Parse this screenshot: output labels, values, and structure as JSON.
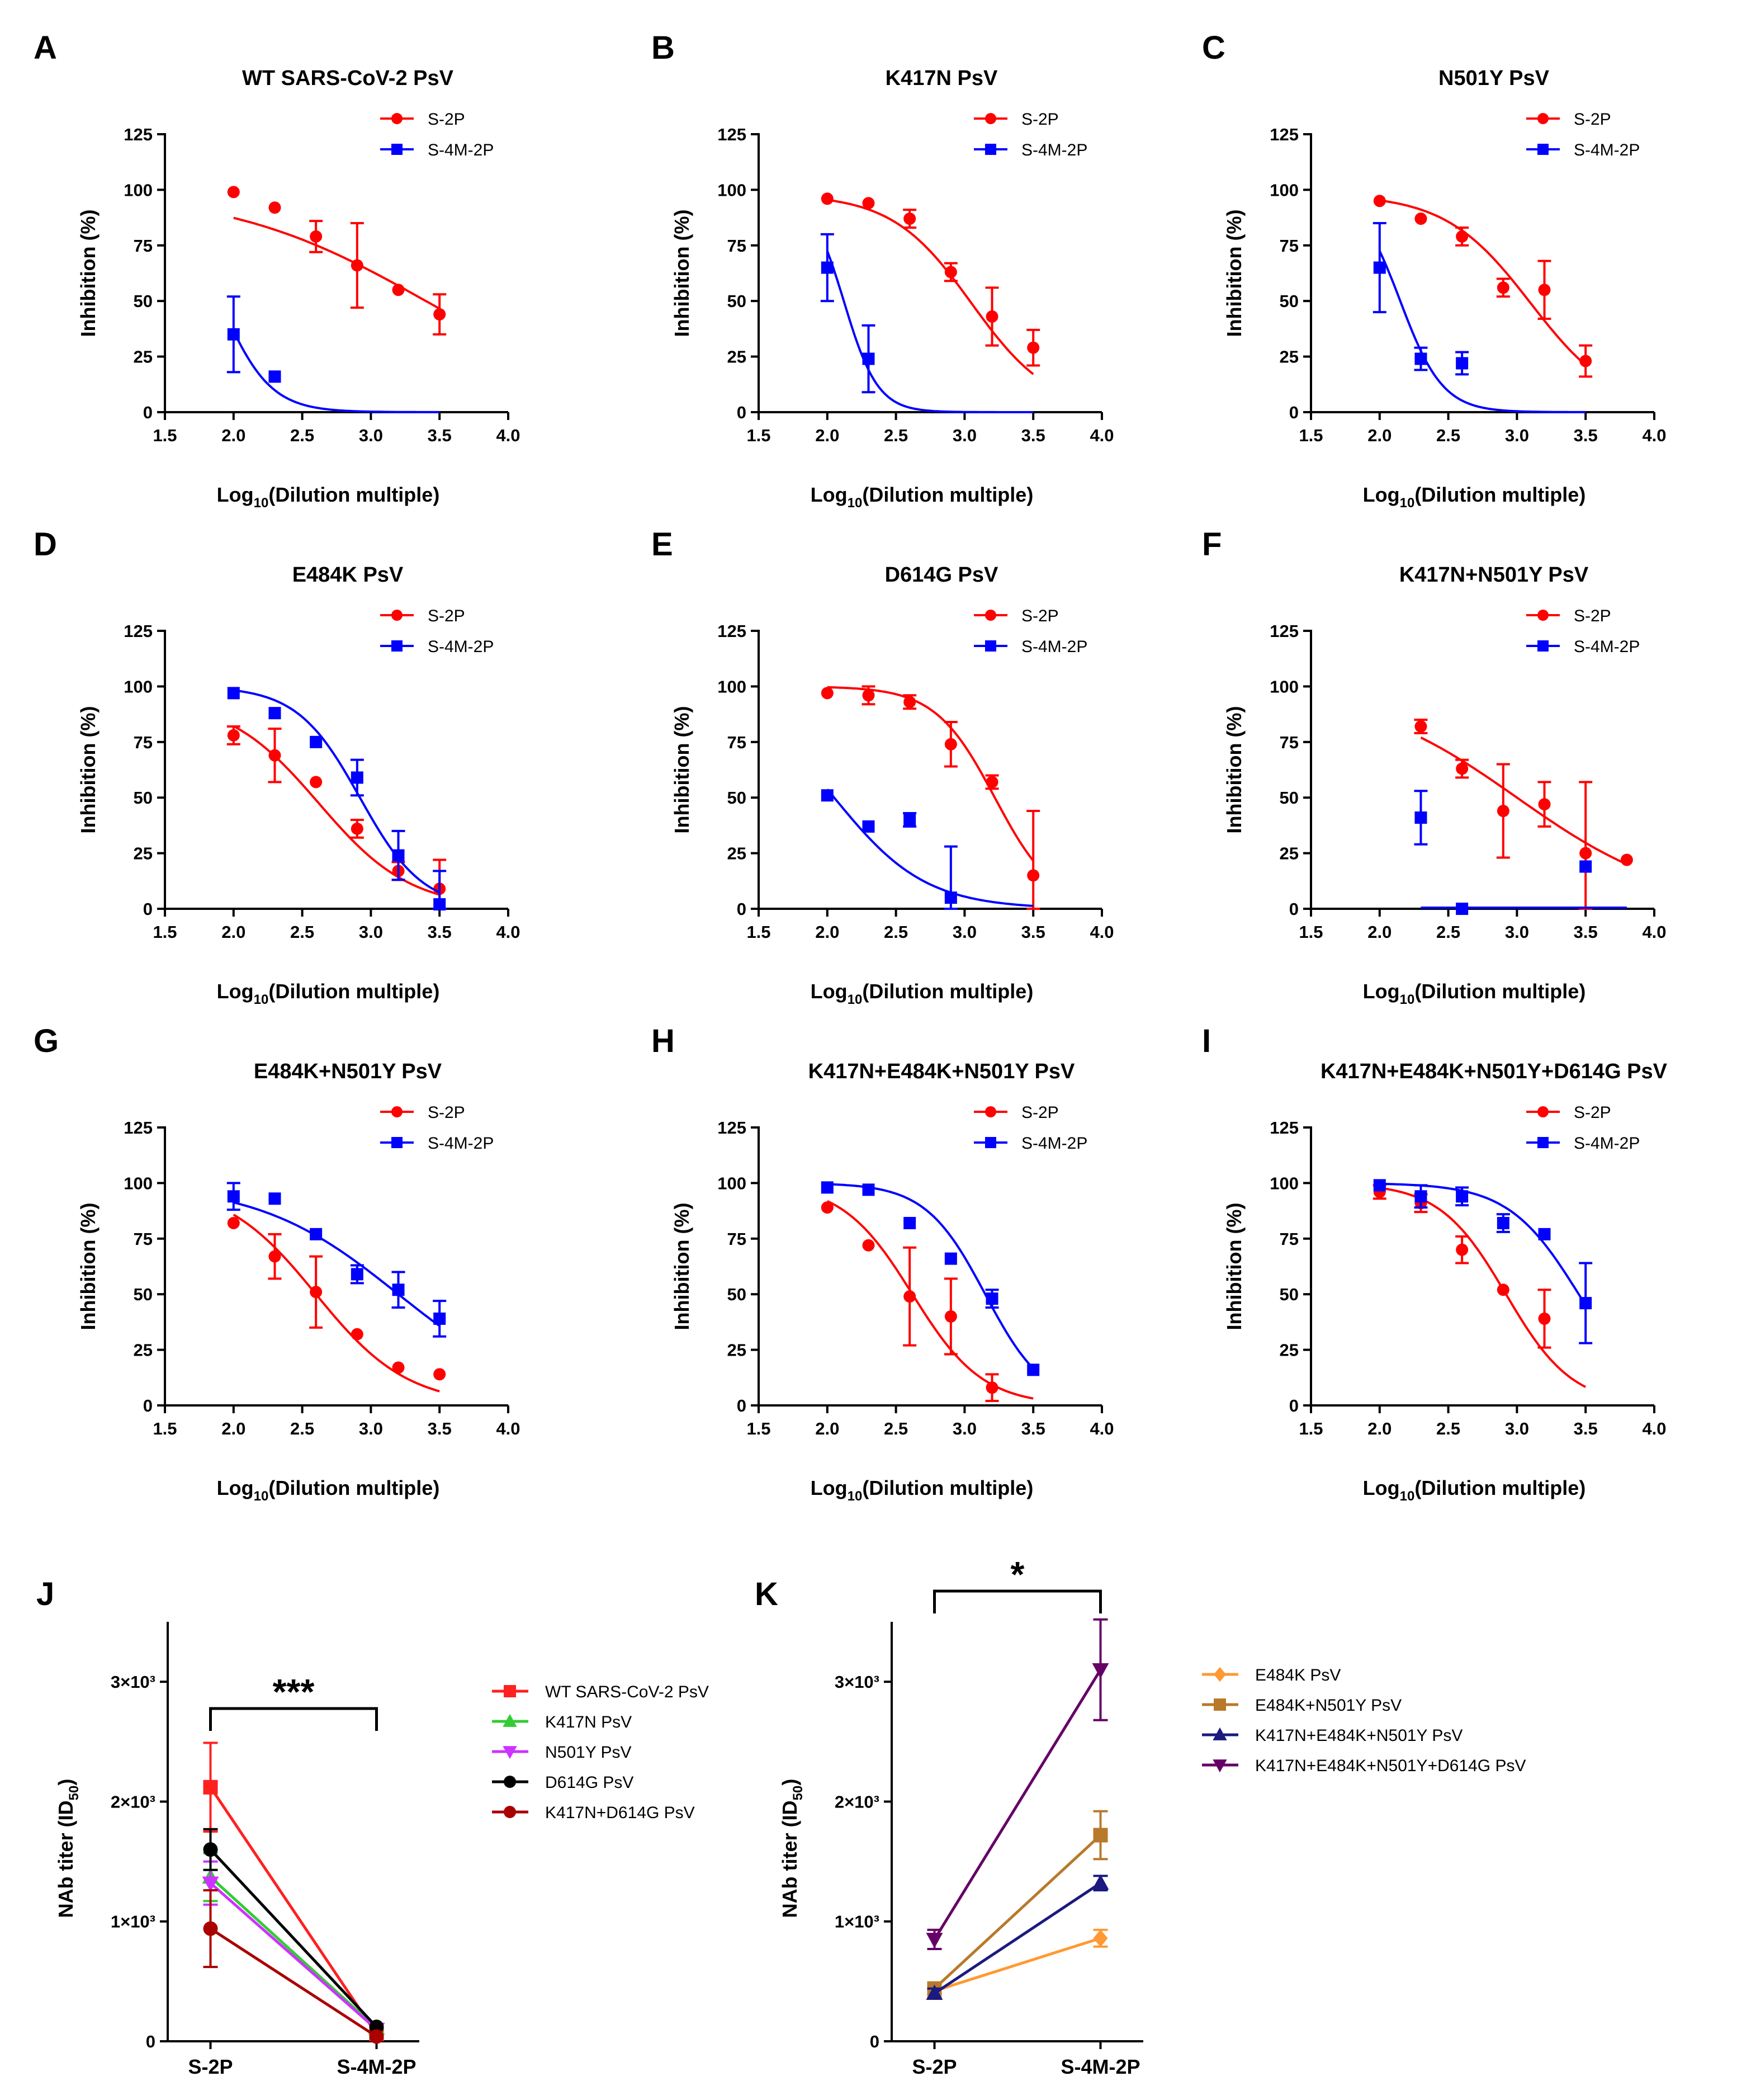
{
  "figure": {
    "panels_curve": [
      "A",
      "B",
      "C",
      "D",
      "E",
      "F",
      "G",
      "H",
      "I"
    ],
    "panels_titer": [
      "J",
      "K"
    ]
  },
  "chart_data": [
    {
      "id": "A",
      "type": "scatter",
      "title": "WT SARS-CoV-2 PsV",
      "xlabel": "Log10(Dilution multiple)",
      "ylabel": "Inhibition (%)",
      "xlim": [
        1.5,
        4.0
      ],
      "ylim": [
        0,
        125
      ],
      "xticks": [
        "1.5",
        "2.0",
        "2.5",
        "3.0",
        "3.5",
        "4.0"
      ],
      "yticks": [
        "0",
        "25",
        "50",
        "75",
        "100",
        "125"
      ],
      "legend": [
        "S-2P",
        "S-4M-2P"
      ],
      "series": [
        {
          "name": "S-2P",
          "color": "#ff0000",
          "marker": "circle",
          "x": [
            2.0,
            2.3,
            2.6,
            2.9,
            3.2,
            3.5
          ],
          "y": [
            99,
            92,
            79,
            66,
            55,
            44
          ],
          "err": [
            0,
            0,
            7,
            19,
            0,
            9
          ],
          "fit": {
            "top": 100,
            "bottom": 0,
            "logIC50": 3.4,
            "hill": 0.6
          }
        },
        {
          "name": "S-4M-2P",
          "color": "#0000ff",
          "marker": "square",
          "x": [
            2.0,
            2.3
          ],
          "y": [
            35,
            16
          ],
          "err": [
            17,
            0
          ],
          "fit": {
            "top": 100,
            "bottom": 0,
            "logIC50": 1.9,
            "hill": 2.4
          }
        }
      ]
    },
    {
      "id": "B",
      "type": "scatter",
      "title": "K417N PsV",
      "xlabel": "Log10(Dilution multiple)",
      "ylabel": "Inhibition (%)",
      "xlim": [
        1.5,
        4.0
      ],
      "ylim": [
        0,
        125
      ],
      "xticks": [
        "1.5",
        "2.0",
        "2.5",
        "3.0",
        "3.5",
        "4.0"
      ],
      "yticks": [
        "0",
        "25",
        "50",
        "75",
        "100",
        "125"
      ],
      "legend": [
        "S-2P",
        "S-4M-2P"
      ],
      "series": [
        {
          "name": "S-2P",
          "color": "#ff0000",
          "marker": "circle",
          "x": [
            2.0,
            2.3,
            2.6,
            2.9,
            3.2,
            3.5
          ],
          "y": [
            96,
            94,
            87,
            63,
            43,
            29
          ],
          "err": [
            0,
            0,
            4,
            4,
            13,
            8
          ],
          "fit": {
            "top": 98,
            "bottom": 0,
            "logIC50": 3.05,
            "hill": 1.5
          }
        },
        {
          "name": "S-4M-2P",
          "color": "#0000ff",
          "marker": "square",
          "x": [
            2.0,
            2.3
          ],
          "y": [
            65,
            24
          ],
          "err": [
            15,
            15
          ],
          "fit": {
            "top": 100,
            "bottom": 0,
            "logIC50": 2.12,
            "hill": 3.5
          }
        }
      ]
    },
    {
      "id": "C",
      "type": "scatter",
      "title": "N501Y PsV",
      "xlabel": "Log10(Dilution multiple)",
      "ylabel": "Inhibition (%)",
      "xlim": [
        1.5,
        4.0
      ],
      "ylim": [
        0,
        125
      ],
      "xticks": [
        "1.5",
        "2.0",
        "2.5",
        "3.0",
        "3.5",
        "4.0"
      ],
      "yticks": [
        "0",
        "25",
        "50",
        "75",
        "100",
        "125"
      ],
      "legend": [
        "S-2P",
        "S-4M-2P"
      ],
      "series": [
        {
          "name": "S-2P",
          "color": "#ff0000",
          "marker": "circle",
          "x": [
            2.0,
            2.3,
            2.6,
            2.9,
            3.2,
            3.5
          ],
          "y": [
            95,
            87,
            79,
            56,
            55,
            23
          ],
          "err": [
            0,
            0,
            4,
            4,
            13,
            7
          ],
          "fit": {
            "top": 98,
            "bottom": 0,
            "logIC50": 3.1,
            "hill": 1.4
          }
        },
        {
          "name": "S-4M-2P",
          "color": "#0000ff",
          "marker": "square",
          "x": [
            2.0,
            2.3,
            2.6
          ],
          "y": [
            65,
            24,
            22
          ],
          "err": [
            20,
            5,
            5
          ],
          "fit": {
            "top": 100,
            "bottom": 0,
            "logIC50": 2.15,
            "hill": 2.8
          }
        }
      ]
    },
    {
      "id": "D",
      "type": "scatter",
      "title": "E484K PsV",
      "xlabel": "Log10(Dilution multiple)",
      "ylabel": "Inhibition (%)",
      "xlim": [
        1.5,
        4.0
      ],
      "ylim": [
        0,
        125
      ],
      "xticks": [
        "1.5",
        "2.0",
        "2.5",
        "3.0",
        "3.5",
        "4.0"
      ],
      "yticks": [
        "0",
        "25",
        "50",
        "75",
        "100",
        "125"
      ],
      "legend": [
        "S-2P",
        "S-4M-2P"
      ],
      "series": [
        {
          "name": "S-2P",
          "color": "#ff0000",
          "marker": "circle",
          "x": [
            2.0,
            2.3,
            2.6,
            2.9,
            3.2,
            3.5
          ],
          "y": [
            78,
            69,
            57,
            36,
            17,
            9
          ],
          "err": [
            4,
            12,
            0,
            4,
            4,
            13
          ],
          "fit": {
            "top": 95,
            "bottom": 0,
            "logIC50": 2.62,
            "hill": 1.3
          }
        },
        {
          "name": "S-4M-2P",
          "color": "#0000ff",
          "marker": "square",
          "x": [
            2.0,
            2.3,
            2.6,
            2.9,
            3.2,
            3.5
          ],
          "y": [
            97,
            88,
            75,
            59,
            24,
            2
          ],
          "err": [
            0,
            0,
            0,
            8,
            11,
            15
          ],
          "fit": {
            "top": 100,
            "bottom": 0,
            "logIC50": 2.92,
            "hill": 1.9
          }
        }
      ]
    },
    {
      "id": "E",
      "type": "scatter",
      "title": "D614G PsV",
      "xlabel": "Log10(Dilution multiple)",
      "ylabel": "Inhibition (%)",
      "xlim": [
        1.5,
        4.0
      ],
      "ylim": [
        0,
        125
      ],
      "xticks": [
        "1.5",
        "2.0",
        "2.5",
        "3.0",
        "3.5",
        "4.0"
      ],
      "yticks": [
        "0",
        "25",
        "50",
        "75",
        "100",
        "125"
      ],
      "legend": [
        "S-2P",
        "S-4M-2P"
      ],
      "series": [
        {
          "name": "S-2P",
          "color": "#ff0000",
          "marker": "circle",
          "x": [
            2.0,
            2.3,
            2.6,
            2.9,
            3.2,
            3.5
          ],
          "y": [
            97,
            96,
            93,
            74,
            57,
            15
          ],
          "err": [
            0,
            4,
            3,
            10,
            3,
            29
          ],
          "fit": {
            "top": 100,
            "bottom": 0,
            "logIC50": 3.22,
            "hill": 2.0
          }
        },
        {
          "name": "S-4M-2P",
          "color": "#0000ff",
          "marker": "square",
          "x": [
            2.0,
            2.3,
            2.6,
            2.9
          ],
          "y": [
            51,
            37,
            40,
            5
          ],
          "err": [
            0,
            0,
            3,
            23
          ],
          "fit": {
            "top": 100,
            "bottom": 0,
            "logIC50": 2.05,
            "hill": 1.3
          }
        }
      ]
    },
    {
      "id": "F",
      "type": "scatter",
      "title": "K417N+N501Y PsV",
      "xlabel": "Log10(Dilution multiple)",
      "ylabel": "Inhibition (%)",
      "xlim": [
        1.5,
        4.0
      ],
      "ylim": [
        0,
        125
      ],
      "xticks": [
        "1.5",
        "2.0",
        "2.5",
        "3.0",
        "3.5",
        "4.0"
      ],
      "yticks": [
        "0",
        "25",
        "50",
        "75",
        "100",
        "125"
      ],
      "legend": [
        "S-2P",
        "S-4M-2P"
      ],
      "series": [
        {
          "name": "S-2P",
          "color": "#ff0000",
          "marker": "circle",
          "x": [
            2.3,
            2.6,
            2.9,
            3.2,
            3.5,
            3.8
          ],
          "y": [
            82,
            63,
            44,
            47,
            25,
            22
          ],
          "err": [
            3,
            4,
            21,
            10,
            32,
            0
          ],
          "fit": {
            "top": 100,
            "bottom": 0,
            "logIC50": 3.0,
            "hill": 0.75
          }
        },
        {
          "name": "S-4M-2P",
          "color": "#0000ff",
          "marker": "square",
          "x": [
            2.3,
            2.6,
            3.5
          ],
          "y": [
            41,
            0,
            19
          ],
          "err": [
            12,
            0,
            0
          ],
          "fit": {
            "type": "flat",
            "value": 0,
            "from": 2.3,
            "to": 3.8
          }
        }
      ]
    },
    {
      "id": "G",
      "type": "scatter",
      "title": "E484K+N501Y PsV",
      "xlabel": "Log10(Dilution multiple)",
      "ylabel": "Inhibition (%)",
      "xlim": [
        1.5,
        4.0
      ],
      "ylim": [
        0,
        125
      ],
      "xticks": [
        "1.5",
        "2.0",
        "2.5",
        "3.0",
        "3.5",
        "4.0"
      ],
      "yticks": [
        "0",
        "25",
        "50",
        "75",
        "100",
        "125"
      ],
      "legend": [
        "S-2P",
        "S-4M-2P"
      ],
      "series": [
        {
          "name": "S-2P",
          "color": "#ff0000",
          "marker": "circle",
          "x": [
            2.0,
            2.3,
            2.6,
            2.9,
            3.2,
            3.5
          ],
          "y": [
            82,
            67,
            51,
            32,
            17,
            14
          ],
          "err": [
            0,
            10,
            16,
            0,
            0,
            0
          ],
          "fit": {
            "top": 100,
            "bottom": 0,
            "logIC50": 2.6,
            "hill": 1.3
          }
        },
        {
          "name": "S-4M-2P",
          "color": "#0000ff",
          "marker": "square",
          "x": [
            2.0,
            2.3,
            2.6,
            2.9,
            3.2,
            3.5
          ],
          "y": [
            94,
            93,
            77,
            59,
            52,
            39
          ],
          "err": [
            6,
            0,
            0,
            4,
            8,
            8
          ],
          "fit": {
            "top": 100,
            "bottom": 0,
            "logIC50": 3.2,
            "hill": 0.85
          }
        }
      ]
    },
    {
      "id": "H",
      "type": "scatter",
      "title": "K417N+E484K+N501Y PsV",
      "xlabel": "Log10(Dilution multiple)",
      "ylabel": "Inhibition (%)",
      "xlim": [
        1.5,
        4.0
      ],
      "ylim": [
        0,
        125
      ],
      "xticks": [
        "1.5",
        "2.0",
        "2.5",
        "3.0",
        "3.5",
        "4.0"
      ],
      "yticks": [
        "0",
        "25",
        "50",
        "75",
        "100",
        "125"
      ],
      "legend": [
        "S-2P",
        "S-4M-2P"
      ],
      "series": [
        {
          "name": "S-2P",
          "color": "#ff0000",
          "marker": "circle",
          "x": [
            2.0,
            2.3,
            2.6,
            2.9,
            3.2
          ],
          "y": [
            89,
            72,
            49,
            40,
            8
          ],
          "err": [
            0,
            0,
            22,
            17,
            6
          ],
          "fit": {
            "top": 100,
            "bottom": 0,
            "logIC50": 2.62,
            "hill": 1.7
          }
        },
        {
          "name": "S-4M-2P",
          "color": "#0000ff",
          "marker": "square",
          "x": [
            2.0,
            2.3,
            2.6,
            2.9,
            3.2,
            3.5
          ],
          "y": [
            98,
            97,
            82,
            66,
            48,
            16
          ],
          "err": [
            0,
            0,
            0,
            0,
            4,
            0
          ],
          "fit": {
            "top": 100,
            "bottom": 0,
            "logIC50": 3.15,
            "hill": 2.0
          }
        }
      ]
    },
    {
      "id": "I",
      "type": "scatter",
      "title": "K417N+E484K+N501Y+D614G PsV",
      "xlabel": "Log10(Dilution multiple)",
      "ylabel": "Inhibition (%)",
      "xlim": [
        1.5,
        4.0
      ],
      "ylim": [
        0,
        125
      ],
      "xticks": [
        "1.5",
        "2.0",
        "2.5",
        "3.0",
        "3.5",
        "4.0"
      ],
      "yticks": [
        "0",
        "25",
        "50",
        "75",
        "100",
        "125"
      ],
      "legend": [
        "S-2P",
        "S-4M-2P"
      ],
      "series": [
        {
          "name": "S-2P",
          "color": "#ff0000",
          "marker": "circle",
          "x": [
            2.0,
            2.3,
            2.6,
            2.9,
            3.2
          ],
          "y": [
            96,
            91,
            70,
            52,
            39
          ],
          "err": [
            3,
            4,
            6,
            0,
            13
          ],
          "fit": {
            "top": 100,
            "bottom": 0,
            "logIC50": 2.92,
            "hill": 1.8
          }
        },
        {
          "name": "S-4M-2P",
          "color": "#0000ff",
          "marker": "square",
          "x": [
            2.0,
            2.3,
            2.6,
            2.9,
            3.2,
            3.5
          ],
          "y": [
            99,
            94,
            94,
            82,
            77,
            46
          ],
          "err": [
            0,
            5,
            4,
            4,
            0,
            18
          ],
          "fit": {
            "top": 100,
            "bottom": 0,
            "logIC50": 3.45,
            "hill": 1.7
          }
        }
      ]
    },
    {
      "id": "J",
      "type": "line",
      "title": "",
      "ylabel": "NAb titer (ID50)",
      "categories": [
        "S-2P",
        "S-4M-2P"
      ],
      "ylim": [
        0,
        3500
      ],
      "yticks": [
        "0",
        "1×10³",
        "2×10³",
        "3×10³"
      ],
      "significance": "***",
      "series": [
        {
          "name": "WT SARS-CoV-2 PsV",
          "color": "#ff2020",
          "marker": "square",
          "values": [
            2120,
            60
          ],
          "err": [
            370,
            0
          ]
        },
        {
          "name": "K417N PsV",
          "color": "#33cc33",
          "marker": "triangle",
          "values": [
            1370,
            110
          ],
          "err": [
            200,
            0
          ]
        },
        {
          "name": "N501Y PsV",
          "color": "#cc33ff",
          "marker": "triangle-down",
          "values": [
            1320,
            100
          ],
          "err": [
            180,
            0
          ]
        },
        {
          "name": "D614G PsV",
          "color": "#000000",
          "marker": "circle",
          "values": [
            1600,
            120
          ],
          "err": [
            170,
            0
          ]
        },
        {
          "name": "K417N+D614G PsV",
          "color": "#aa0000",
          "marker": "circle",
          "values": [
            940,
            40
          ],
          "err": [
            320,
            0
          ]
        }
      ]
    },
    {
      "id": "K",
      "type": "line",
      "title": "",
      "ylabel": "NAb titer (ID50)",
      "categories": [
        "S-2P",
        "S-4M-2P"
      ],
      "ylim": [
        0,
        3500
      ],
      "yticks": [
        "0",
        "1×10³",
        "2×10³",
        "3×10³"
      ],
      "significance": "*",
      "series": [
        {
          "name": "E484K PsV",
          "color": "#ff9933",
          "marker": "diamond",
          "values": [
            420,
            860
          ],
          "err": [
            40,
            70
          ]
        },
        {
          "name": "E484K+N501Y PsV",
          "color": "#b8792a",
          "marker": "square",
          "values": [
            440,
            1720
          ],
          "err": [
            40,
            200
          ]
        },
        {
          "name": "K417N+E484K+N501Y PsV",
          "color": "#1a1a80",
          "marker": "triangle",
          "values": [
            400,
            1320
          ],
          "err": [
            40,
            60
          ]
        },
        {
          "name": "K417N+E484K+N501Y+D614G PsV",
          "color": "#660066",
          "marker": "triangle-down",
          "values": [
            850,
            3100
          ],
          "err": [
            80,
            420
          ]
        }
      ]
    }
  ]
}
